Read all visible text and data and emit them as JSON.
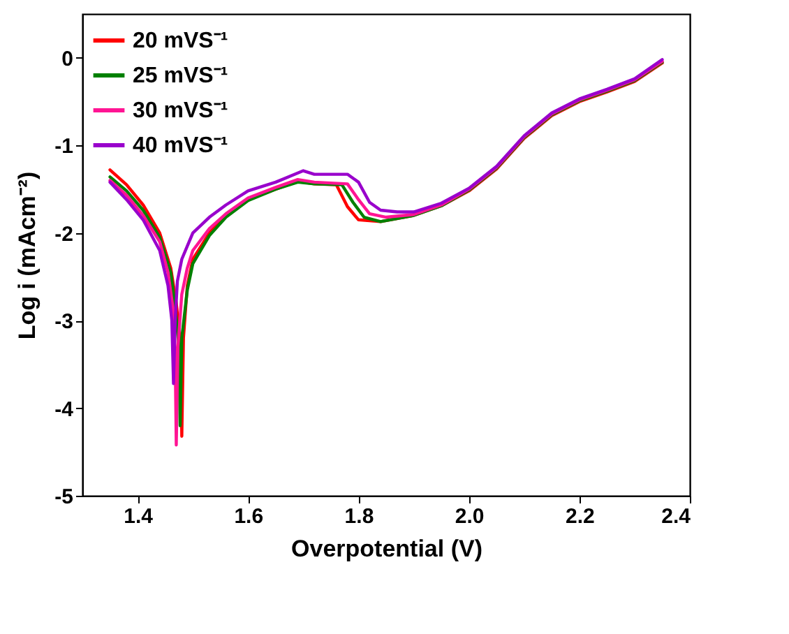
{
  "chart_data": {
    "type": "line",
    "xlabel": "Overpotential (V)",
    "ylabel": "Log i (mAcm⁻²)",
    "xlim": [
      1.3,
      2.4
    ],
    "xticks": [
      1.4,
      1.6,
      1.8,
      {
        "value": 2,
        "label": "2.0"
      },
      2.2,
      2.4
    ],
    "ylim": [
      -5,
      0.5
    ],
    "yticks": [
      -5,
      -4,
      -3,
      -2,
      -1,
      0
    ],
    "grid": false,
    "legend": "top left",
    "marker": "none",
    "line_style": "solid",
    "series": [
      {
        "name": "20 mVS⁻¹",
        "color": "#ff0000",
        "x": [
          1.35,
          1.38,
          1.41,
          1.44,
          1.46,
          1.47,
          1.478,
          1.48,
          1.483,
          1.49,
          1.5,
          1.53,
          1.56,
          1.6,
          1.65,
          1.69,
          1.72,
          1.76,
          1.78,
          1.8,
          1.84,
          1.9,
          1.95,
          2.0,
          2.05,
          2.1,
          2.15,
          2.2,
          2.25,
          2.3,
          2.35
        ],
        "values": [
          -1.28,
          -1.45,
          -1.68,
          -2.0,
          -2.4,
          -2.8,
          -3.3,
          -4.32,
          -3.2,
          -2.6,
          -2.3,
          -2.0,
          -1.8,
          -1.62,
          -1.5,
          -1.41,
          -1.44,
          -1.45,
          -1.7,
          -1.85,
          -1.87,
          -1.8,
          -1.69,
          -1.52,
          -1.27,
          -0.92,
          -0.66,
          -0.5,
          -0.39,
          -0.27,
          -0.06
        ]
      },
      {
        "name": "25 mVS⁻¹",
        "color": "#008000",
        "x": [
          1.35,
          1.38,
          1.41,
          1.44,
          1.46,
          1.468,
          1.475,
          1.477,
          1.48,
          1.49,
          1.5,
          1.53,
          1.56,
          1.6,
          1.65,
          1.69,
          1.72,
          1.77,
          1.79,
          1.81,
          1.84,
          1.9,
          1.95,
          2.0,
          2.05,
          2.1,
          2.15,
          2.2,
          2.25,
          2.3,
          2.35
        ],
        "values": [
          -1.36,
          -1.52,
          -1.74,
          -2.05,
          -2.45,
          -2.85,
          -3.3,
          -4.2,
          -3.2,
          -2.65,
          -2.35,
          -2.03,
          -1.82,
          -1.63,
          -1.5,
          -1.42,
          -1.44,
          -1.45,
          -1.65,
          -1.82,
          -1.87,
          -1.8,
          -1.69,
          -1.51,
          -1.26,
          -0.91,
          -0.65,
          -0.49,
          -0.38,
          -0.26,
          -0.05
        ]
      },
      {
        "name": "30 mVS⁻¹",
        "color": "#ff1493",
        "x": [
          1.35,
          1.38,
          1.41,
          1.44,
          1.455,
          1.465,
          1.468,
          1.47,
          1.473,
          1.48,
          1.49,
          1.5,
          1.53,
          1.56,
          1.6,
          1.65,
          1.69,
          1.72,
          1.78,
          1.8,
          1.82,
          1.85,
          1.9,
          1.95,
          2.0,
          2.05,
          2.1,
          2.15,
          2.2,
          2.25,
          2.3,
          2.35
        ],
        "values": [
          -1.4,
          -1.57,
          -1.8,
          -2.1,
          -2.45,
          -2.9,
          -3.4,
          -4.42,
          -3.3,
          -2.7,
          -2.4,
          -2.2,
          -1.95,
          -1.78,
          -1.6,
          -1.48,
          -1.39,
          -1.42,
          -1.44,
          -1.62,
          -1.78,
          -1.82,
          -1.79,
          -1.68,
          -1.5,
          -1.25,
          -0.9,
          -0.64,
          -0.48,
          -0.37,
          -0.25,
          -0.04
        ]
      },
      {
        "name": "40 mVS⁻¹",
        "color": "#9900cc",
        "x": [
          1.35,
          1.38,
          1.41,
          1.44,
          1.455,
          1.462,
          1.465,
          1.468,
          1.472,
          1.48,
          1.49,
          1.5,
          1.53,
          1.56,
          1.6,
          1.65,
          1.7,
          1.72,
          1.78,
          1.8,
          1.82,
          1.84,
          1.87,
          1.9,
          1.95,
          2.0,
          2.05,
          2.1,
          2.15,
          2.2,
          2.25,
          2.3,
          2.35
        ],
        "values": [
          -1.42,
          -1.62,
          -1.85,
          -2.2,
          -2.6,
          -3.0,
          -3.72,
          -3.0,
          -2.55,
          -2.3,
          -2.15,
          -2.0,
          -1.82,
          -1.68,
          -1.52,
          -1.42,
          -1.29,
          -1.33,
          -1.33,
          -1.42,
          -1.65,
          -1.74,
          -1.76,
          -1.76,
          -1.66,
          -1.49,
          -1.24,
          -0.89,
          -0.63,
          -0.47,
          -0.36,
          -0.24,
          -0.02
        ]
      }
    ]
  }
}
